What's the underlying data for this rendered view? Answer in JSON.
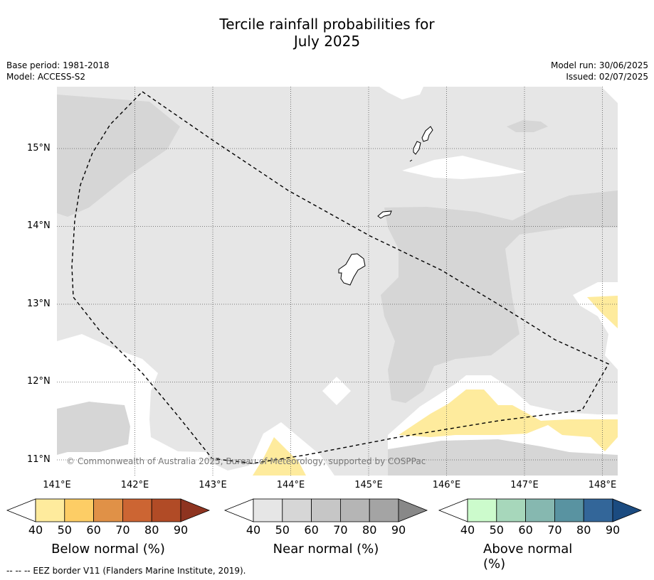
{
  "title": {
    "line1": "Tercile rainfall probabilities for",
    "line2": "July 2025"
  },
  "info": {
    "base_period": "Base period: 1981-2018",
    "model": "Model: ACCESS-S2",
    "model_run": "Model run: 30/06/2025",
    "issued": "Issued: 02/07/2025"
  },
  "map": {
    "lat_labels": [
      "15°N",
      "14°N",
      "13°N",
      "12°N",
      "11°N"
    ],
    "lon_labels": [
      "141°E",
      "142°E",
      "143°E",
      "144°E",
      "145°E",
      "146°E",
      "147°E",
      "148°E"
    ],
    "copyright": "© Commonwealth of Australia 2025, Bureau of Meteorology, supported by COSPPac",
    "colors": {
      "near_40": "#e6e6e6",
      "near_50": "#d6d6d6",
      "below_40": "#feeb9d",
      "border": "#000000"
    }
  },
  "colorbars": [
    {
      "label": "Below normal (%)",
      "ticks": [
        "40",
        "50",
        "60",
        "70",
        "80",
        "90"
      ],
      "colors": [
        "#ffffff",
        "#feeb9d",
        "#fdcd65",
        "#e09147",
        "#cc6533",
        "#b14b26",
        "#8e3420"
      ]
    },
    {
      "label": "Near normal (%)",
      "ticks": [
        "40",
        "50",
        "60",
        "70",
        "80",
        "90"
      ],
      "colors": [
        "#ffffff",
        "#e6e6e6",
        "#d6d6d6",
        "#c6c6c6",
        "#b5b5b5",
        "#a4a4a4",
        "#888888"
      ]
    },
    {
      "label": "Above normal (%)",
      "ticks": [
        "40",
        "50",
        "60",
        "70",
        "80",
        "90"
      ],
      "colors": [
        "#ffffff",
        "#ccfbcc",
        "#a7d7bb",
        "#86b8b0",
        "#5993a1",
        "#336699",
        "#1b4b80"
      ]
    }
  ],
  "footnote": "--  --  -- EEZ border V11 (Flanders Marine Institute, 2019)."
}
